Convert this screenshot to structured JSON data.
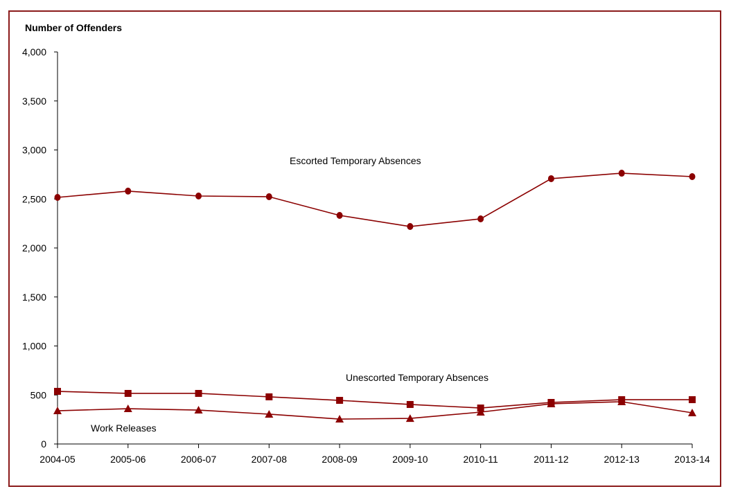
{
  "chart_data": {
    "type": "line",
    "title": "",
    "ylabel": "Number of Offenders",
    "xlabel": "",
    "ylim": [
      0,
      4000
    ],
    "yticks": [
      0,
      500,
      1000,
      1500,
      2000,
      2500,
      3000,
      3500,
      4000
    ],
    "ytick_labels": [
      "0",
      "500",
      "1,000",
      "1,500",
      "2,000",
      "2,500",
      "3,000",
      "3,500",
      "4,000"
    ],
    "categories": [
      "2004-05",
      "2005-06",
      "2006-07",
      "2007-08",
      "2008-09",
      "2009-10",
      "2010-11",
      "2011-12",
      "2012-13",
      "2013-14"
    ],
    "grid": false,
    "legend": "none (inline labels)",
    "color": "#8b0000",
    "frame_color": "#8b1a1a",
    "series": [
      {
        "name": "Escorted Temporary Absences",
        "marker": "circle",
        "values": [
          2516,
          2580,
          2530,
          2523,
          2332,
          2219,
          2297,
          2707,
          2763,
          2728
        ]
      },
      {
        "name": "Unescorted Temporary Absences",
        "marker": "square",
        "values": [
          537,
          516,
          516,
          481,
          445,
          403,
          367,
          424,
          452,
          452
        ]
      },
      {
        "name": "Work Releases",
        "marker": "triangle",
        "values": [
          339,
          360,
          346,
          304,
          254,
          261,
          325,
          410,
          431,
          318
        ]
      }
    ]
  }
}
